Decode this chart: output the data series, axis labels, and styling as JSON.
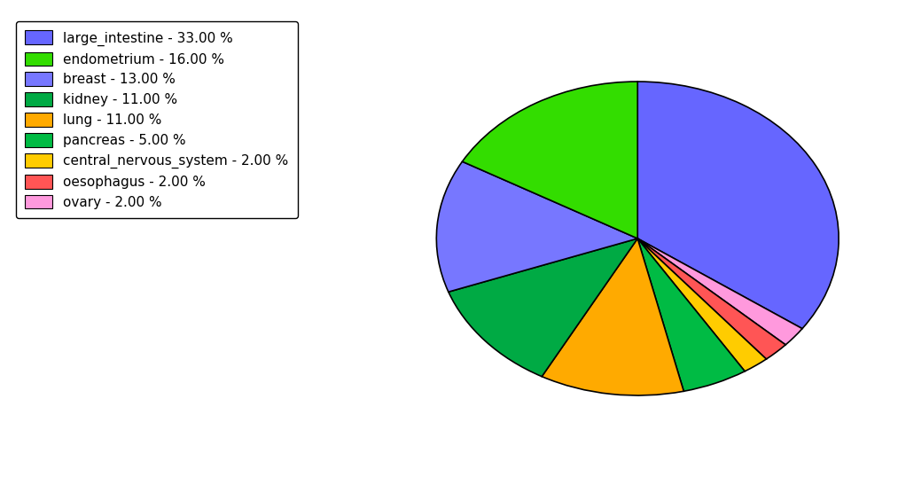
{
  "labels": [
    "large_intestine",
    "ovary",
    "oesophagus",
    "central_nervous_system",
    "pancreas",
    "lung",
    "kidney",
    "breast",
    "endometrium"
  ],
  "values": [
    33.0,
    2.0,
    2.0,
    2.0,
    5.0,
    11.0,
    11.0,
    13.0,
    16.0
  ],
  "colors": [
    "#6666ff",
    "#ff99dd",
    "#ff5555",
    "#ffcc00",
    "#00bb44",
    "#ffaa00",
    "#00aa44",
    "#7777ff",
    "#33dd00"
  ],
  "legend_labels": [
    "large_intestine - 33.00 %",
    "endometrium - 16.00 %",
    "breast - 13.00 %",
    "kidney - 11.00 %",
    "lung - 11.00 %",
    "pancreas - 5.00 %",
    "central_nervous_system - 2.00 %",
    "oesophagus - 2.00 %",
    "ovary - 2.00 %"
  ],
  "legend_colors": [
    "#6666ff",
    "#33dd00",
    "#7777ff",
    "#00aa44",
    "#ffaa00",
    "#00bb44",
    "#ffcc00",
    "#ff5555",
    "#ff99dd"
  ],
  "startangle": 90,
  "figsize": [
    10.13,
    5.38
  ],
  "dpi": 100
}
